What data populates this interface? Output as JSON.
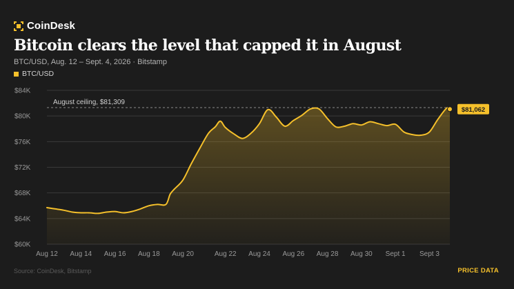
{
  "brand": {
    "name": "CoinDesk",
    "icon": "coindesk-logo-icon",
    "color": "#f5c02b"
  },
  "title": "Bitcoin clears the level that capped it in August",
  "subtitle": "BTC/USD, Aug. 12 – Sept. 4, 2026 · Bitstamp",
  "legend": {
    "label": "BTC/USD",
    "color": "#f5c02b"
  },
  "footer": {
    "source": "Source: CoinDesk, Bitstamp",
    "link": "PRICE DATA"
  },
  "colors": {
    "background": "#1c1c1c",
    "line": "#f5c02b",
    "grid": "#3a3a3a",
    "axis_text": "#9a9a9a"
  },
  "chart_data": {
    "type": "area",
    "title": "Bitcoin clears the level that capped it in August",
    "series": [
      {
        "name": "BTC/USD",
        "color": "#f5c02b",
        "x": [
          12.0,
          12.5,
          13.0,
          13.5,
          14.0,
          14.5,
          15.0,
          15.5,
          16.0,
          16.5,
          17.0,
          17.5,
          18.0,
          18.5,
          19.0,
          19.25,
          19.5,
          20.0,
          20.5,
          21.0,
          21.5,
          21.9,
          22.2,
          22.5,
          23.0,
          23.5,
          24.0,
          24.5,
          25.0,
          25.5,
          26.0,
          26.5,
          27.0,
          27.5,
          28.0,
          28.5,
          29.0,
          29.5,
          30.0,
          30.5,
          31.0,
          31.5,
          32.0,
          32.5,
          33.0,
          33.5,
          34.0,
          34.5,
          35.0,
          35.5,
          35.7
        ],
        "y": [
          65.7,
          65.5,
          65.3,
          65.0,
          64.9,
          64.9,
          64.8,
          65.0,
          65.1,
          64.9,
          65.1,
          65.5,
          66.0,
          66.2,
          66.2,
          67.8,
          68.6,
          70.0,
          72.6,
          75.0,
          77.3,
          78.3,
          79.2,
          78.2,
          77.2,
          76.5,
          77.3,
          78.8,
          81.0,
          79.8,
          78.4,
          79.3,
          80.1,
          81.1,
          81.1,
          79.6,
          78.3,
          78.4,
          78.8,
          78.6,
          79.1,
          78.8,
          78.5,
          78.7,
          77.5,
          77.1,
          77.0,
          77.5,
          79.5,
          81.2,
          81.06
        ]
      }
    ],
    "x_ticks": [
      {
        "x": 12,
        "label": "Aug 12"
      },
      {
        "x": 14,
        "label": "Aug 14"
      },
      {
        "x": 16,
        "label": "Aug 16"
      },
      {
        "x": 18,
        "label": "Aug 18"
      },
      {
        "x": 20,
        "label": "Aug 20"
      },
      {
        "x": 22.5,
        "label": "Aug 22"
      },
      {
        "x": 24.5,
        "label": "Aug 24"
      },
      {
        "x": 26.5,
        "label": "Aug 26"
      },
      {
        "x": 28.5,
        "label": "Aug 28"
      },
      {
        "x": 30.5,
        "label": "Aug 30"
      },
      {
        "x": 32.5,
        "label": "Sept 1"
      },
      {
        "x": 34.5,
        "label": "Sept 3"
      }
    ],
    "y_ticks": [
      {
        "y": 60,
        "label": "$60K"
      },
      {
        "y": 64,
        "label": "$64K"
      },
      {
        "y": 68,
        "label": "$68K"
      },
      {
        "y": 72,
        "label": "$72K"
      },
      {
        "y": 76,
        "label": "$76K"
      },
      {
        "y": 80,
        "label": "$80K"
      },
      {
        "y": 84,
        "label": "$84K"
      }
    ],
    "ylim": [
      60,
      84
    ],
    "xlim": [
      12,
      35.7
    ],
    "grid": true,
    "reference_line": {
      "y": 81.309,
      "label": "August ceiling, $81,309"
    },
    "last_value": {
      "x": 35.7,
      "y": 81.062,
      "label": "$81,062"
    }
  }
}
